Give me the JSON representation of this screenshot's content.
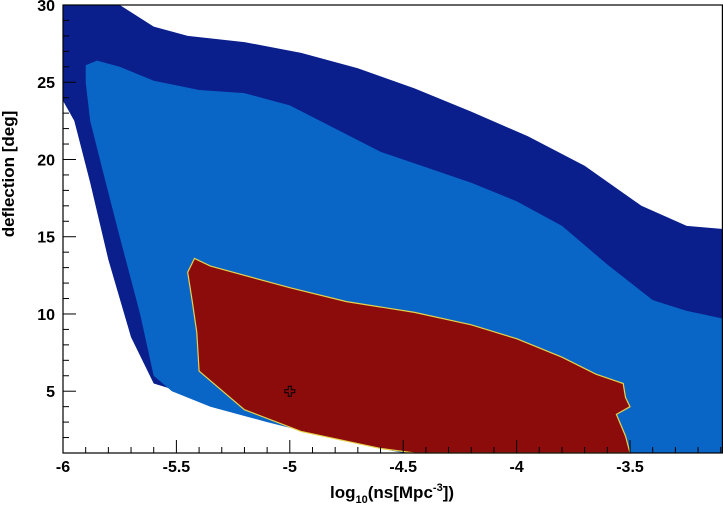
{
  "chart_data": {
    "type": "contour",
    "xlabel": {
      "prefix": "log",
      "subscript": "10",
      "main": "(ns[Mpc",
      "superscript": "-3",
      "suffix": "])"
    },
    "ylabel": "deflection [deg]",
    "xlim": [
      -6.0,
      -3.09
    ],
    "ylim": [
      1.0,
      30.0
    ],
    "x_ticks": [
      -6,
      -5.5,
      -5,
      -4.5,
      -4,
      -3.5
    ],
    "x_tick_labels": [
      "-6",
      "-5.5",
      "-5",
      "-4.5",
      "-4",
      "-3.5"
    ],
    "y_ticks": [
      5,
      10,
      15,
      20,
      25,
      30
    ],
    "y_tick_labels": [
      "5",
      "10",
      "15",
      "20",
      "25",
      "30"
    ],
    "best_fit": {
      "x": -5.0,
      "y": 5.0
    },
    "regions": [
      {
        "level": "outer",
        "color": "#0a1f8c",
        "polygon": [
          [
            -6.0,
            30.0
          ],
          [
            -5.75,
            30.0
          ],
          [
            -5.6,
            28.6
          ],
          [
            -5.45,
            28.0
          ],
          [
            -5.2,
            27.6
          ],
          [
            -4.95,
            26.9
          ],
          [
            -4.7,
            25.9
          ],
          [
            -4.45,
            24.6
          ],
          [
            -4.2,
            23.1
          ],
          [
            -3.95,
            21.5
          ],
          [
            -3.7,
            19.6
          ],
          [
            -3.45,
            17.0
          ],
          [
            -3.25,
            15.7
          ],
          [
            -3.09,
            15.5
          ],
          [
            -3.09,
            1.0
          ],
          [
            -4.45,
            1.0
          ],
          [
            -4.8,
            2.4
          ],
          [
            -5.1,
            3.5
          ],
          [
            -5.4,
            4.6
          ],
          [
            -5.6,
            5.5
          ],
          [
            -5.7,
            8.5
          ],
          [
            -5.8,
            13.5
          ],
          [
            -5.88,
            18.5
          ],
          [
            -5.95,
            22.5
          ],
          [
            -6.0,
            23.8
          ]
        ]
      },
      {
        "level": "middle",
        "color": "#0a66c6",
        "polygon": [
          [
            -5.9,
            26.1
          ],
          [
            -5.85,
            26.4
          ],
          [
            -5.75,
            26.0
          ],
          [
            -5.6,
            25.1
          ],
          [
            -5.4,
            24.5
          ],
          [
            -5.2,
            24.3
          ],
          [
            -5.0,
            23.5
          ],
          [
            -4.8,
            22.0
          ],
          [
            -4.6,
            20.5
          ],
          [
            -4.4,
            19.5
          ],
          [
            -4.2,
            18.5
          ],
          [
            -4.0,
            17.3
          ],
          [
            -3.8,
            15.7
          ],
          [
            -3.6,
            13.2
          ],
          [
            -3.4,
            10.9
          ],
          [
            -3.25,
            10.2
          ],
          [
            -3.09,
            9.7
          ],
          [
            -3.09,
            1.0
          ],
          [
            -4.5,
            1.0
          ],
          [
            -4.8,
            1.9
          ],
          [
            -5.1,
            3.0
          ],
          [
            -5.35,
            4.0
          ],
          [
            -5.52,
            5.0
          ],
          [
            -5.6,
            6.0
          ],
          [
            -5.66,
            10.0
          ],
          [
            -5.75,
            15.0
          ],
          [
            -5.82,
            19.0
          ],
          [
            -5.88,
            22.5
          ],
          [
            -5.9,
            25.0
          ]
        ]
      },
      {
        "level": "inner",
        "color": "#8c0c0c",
        "polygon": [
          [
            -5.45,
            12.7
          ],
          [
            -5.42,
            13.6
          ],
          [
            -5.35,
            13.1
          ],
          [
            -5.0,
            11.7
          ],
          [
            -4.75,
            10.8
          ],
          [
            -4.45,
            10.1
          ],
          [
            -4.2,
            9.3
          ],
          [
            -4.0,
            8.4
          ],
          [
            -3.8,
            7.2
          ],
          [
            -3.65,
            6.1
          ],
          [
            -3.53,
            5.5
          ],
          [
            -3.52,
            4.6
          ],
          [
            -3.5,
            4.0
          ],
          [
            -3.56,
            3.5
          ],
          [
            -3.52,
            2.1
          ],
          [
            -3.5,
            1.0
          ],
          [
            -4.45,
            1.0
          ],
          [
            -4.6,
            1.3
          ],
          [
            -4.95,
            2.4
          ],
          [
            -5.2,
            3.8
          ],
          [
            -5.4,
            6.3
          ],
          [
            -5.41,
            8.8
          ],
          [
            -5.43,
            10.8
          ]
        ]
      }
    ]
  }
}
